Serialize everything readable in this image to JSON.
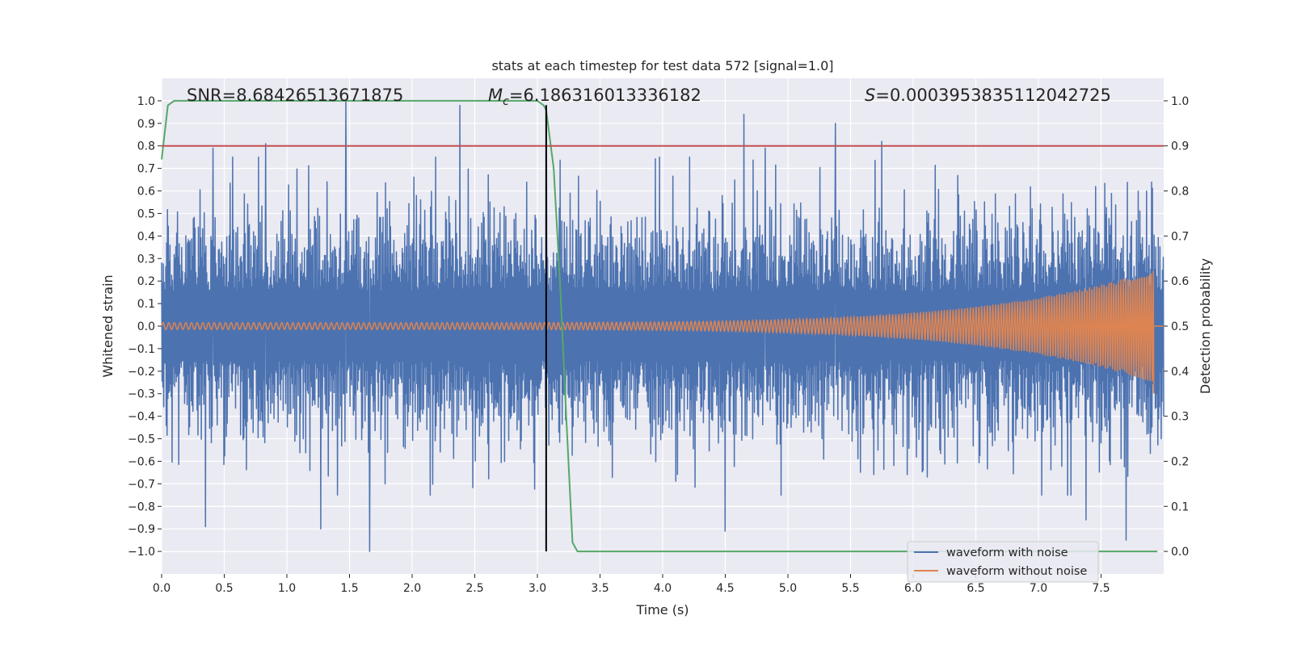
{
  "chart_data": {
    "type": "line",
    "title": "stats at each timestep for test data 572 [signal=1.0]",
    "xlabel": "Time (s)",
    "ylabel_left": "Whitened strain",
    "ylabel_right": "Detection probability",
    "xlim": [
      0.0,
      8.0
    ],
    "ylim_left": [
      -1.1,
      1.1
    ],
    "ylim_right": [
      -0.05,
      1.05
    ],
    "x_ticks": [
      "0.0",
      "0.5",
      "1.0",
      "1.5",
      "2.0",
      "2.5",
      "3.0",
      "3.5",
      "4.0",
      "4.5",
      "5.0",
      "5.5",
      "6.0",
      "6.5",
      "7.0",
      "7.5"
    ],
    "y_ticks_left": [
      "1.0",
      "0.9",
      "0.8",
      "0.7",
      "0.6",
      "0.5",
      "0.4",
      "0.3",
      "0.2",
      "0.1",
      "0.0",
      "−0.1",
      "−0.2",
      "−0.3",
      "−0.4",
      "−0.5",
      "−0.6",
      "−0.7",
      "−0.8",
      "−0.9",
      "−1.0"
    ],
    "y_ticks_right": [
      "1.0",
      "0.9",
      "0.8",
      "0.7",
      "0.6",
      "0.5",
      "0.4",
      "0.3",
      "0.2",
      "0.1",
      "0.0"
    ],
    "annotations": {
      "snr": "SNR=8.68426513671875",
      "mc_symbol": "M",
      "mc_sub": "c",
      "mc_value": "=6.186316013336182",
      "s_symbol": "S",
      "s_value": "=0.0003953835112042725"
    },
    "legend": {
      "placement": "bottom-right",
      "entries": [
        "waveform with noise",
        "waveform without noise"
      ]
    },
    "threshold_line": {
      "axis": "right",
      "value": 0.9,
      "color": "#c44e52"
    },
    "detection_line": {
      "x": 3.07,
      "color": "#000000"
    },
    "series": [
      {
        "name": "waveform with noise",
        "axis": "left",
        "color": "#4c72b0",
        "kind": "noise",
        "x_range": [
          0.0,
          8.0
        ],
        "amplitude_typical": 0.4,
        "amplitude_max": 1.0,
        "peaks": [
          {
            "x": 1.47,
            "y": 1.0
          },
          {
            "x": 2.38,
            "y": 0.98
          },
          {
            "x": 3.07,
            "y": 0.98
          },
          {
            "x": 4.65,
            "y": 0.94
          },
          {
            "x": 4.82,
            "y": 0.79
          },
          {
            "x": 5.38,
            "y": 0.9
          },
          {
            "x": 0.41,
            "y": 0.79
          },
          {
            "x": 0.83,
            "y": 0.81
          },
          {
            "x": 5.75,
            "y": 0.82
          },
          {
            "x": 1.66,
            "y": -1.0
          },
          {
            "x": 0.35,
            "y": -0.89
          },
          {
            "x": 1.27,
            "y": -0.9
          },
          {
            "x": 4.5,
            "y": -0.91
          },
          {
            "x": 7.7,
            "y": -0.95
          },
          {
            "x": 7.38,
            "y": -0.86
          }
        ]
      },
      {
        "name": "waveform without noise",
        "axis": "left",
        "color": "#dd8452",
        "kind": "chirp",
        "x_range": [
          0.0,
          7.92
        ],
        "start_amplitude": 0.015,
        "end_amplitude": 0.25,
        "min_value": -0.3
      },
      {
        "name": "detection probability",
        "axis": "right",
        "color": "#55a868",
        "x": [
          0.0,
          0.05,
          0.1,
          0.15,
          0.5,
          1.0,
          1.5,
          2.0,
          2.5,
          3.0,
          3.05,
          3.07,
          3.13,
          3.18,
          3.23,
          3.28,
          3.32,
          3.4,
          4.0,
          5.0,
          6.0,
          7.0,
          8.0
        ],
        "y": [
          0.87,
          0.99,
          1.0,
          1.0,
          1.0,
          1.0,
          1.0,
          1.0,
          1.0,
          1.0,
          0.99,
          0.98,
          0.85,
          0.6,
          0.3,
          0.02,
          0.0,
          0.0,
          0.0,
          0.0,
          0.0,
          0.0,
          0.0
        ]
      }
    ]
  }
}
